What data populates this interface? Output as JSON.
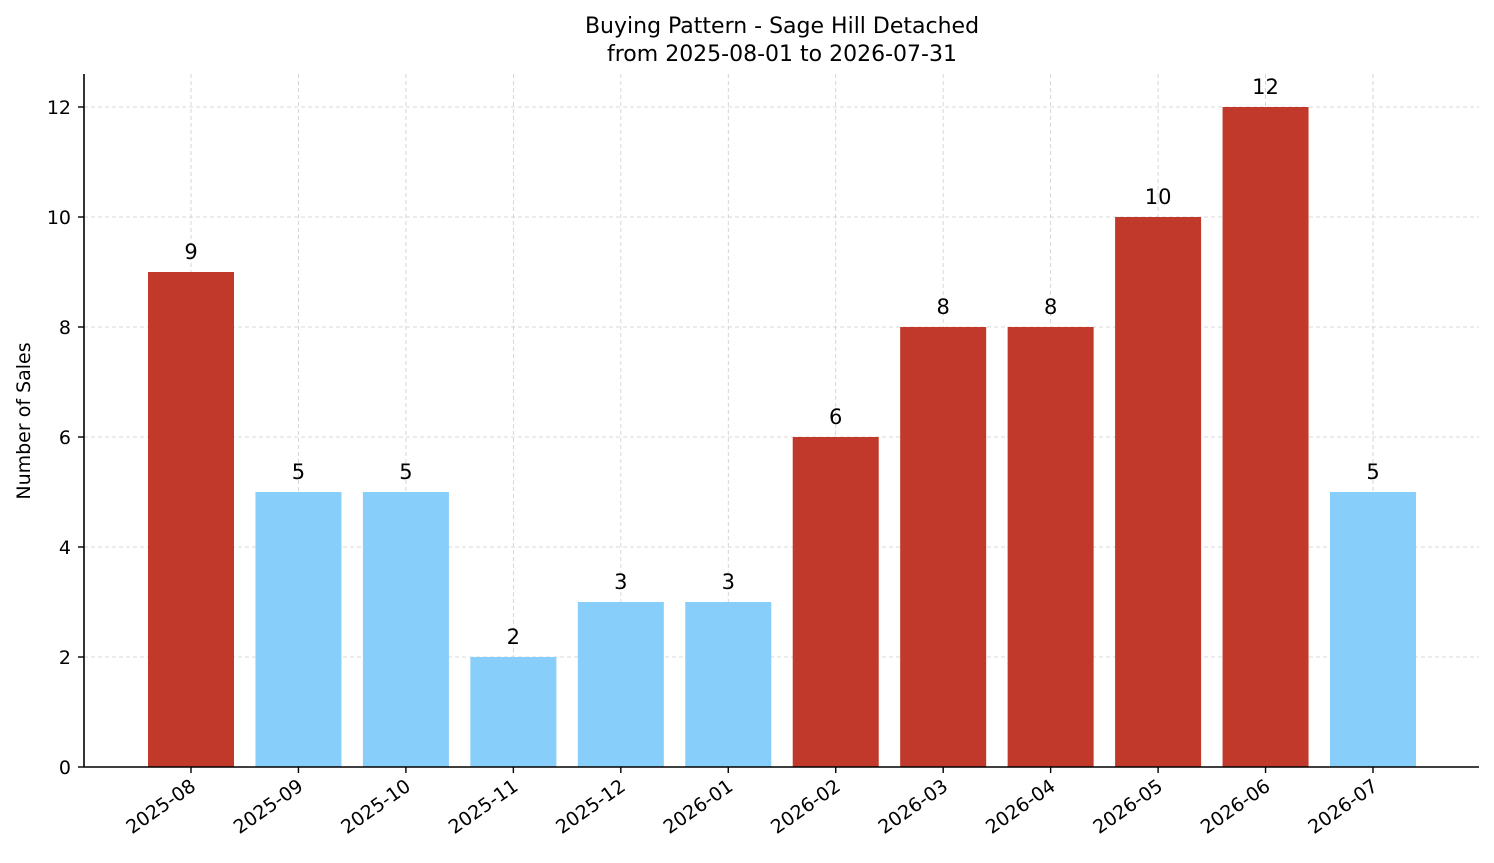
{
  "chart_data": {
    "type": "bar",
    "title": "Buying Pattern - Sage Hill Detached",
    "subtitle": "from 2025-08-01 to 2026-07-31",
    "xlabel": "",
    "ylabel": "Number of Sales",
    "categories": [
      "2025-08",
      "2025-09",
      "2025-10",
      "2025-11",
      "2025-12",
      "2026-01",
      "2026-02",
      "2026-03",
      "2026-04",
      "2026-05",
      "2026-06",
      "2026-07"
    ],
    "values": [
      9,
      5,
      5,
      2,
      3,
      3,
      6,
      8,
      8,
      10,
      12,
      5
    ],
    "bar_colors": [
      "#c0392b",
      "#87cefa",
      "#87cefa",
      "#87cefa",
      "#87cefa",
      "#87cefa",
      "#c0392b",
      "#c0392b",
      "#c0392b",
      "#c0392b",
      "#c0392b",
      "#87cefa"
    ],
    "ylim": [
      0,
      12.6
    ],
    "yticks": [
      0,
      2,
      4,
      6,
      8,
      10,
      12
    ],
    "grid": true,
    "legend": "none"
  }
}
